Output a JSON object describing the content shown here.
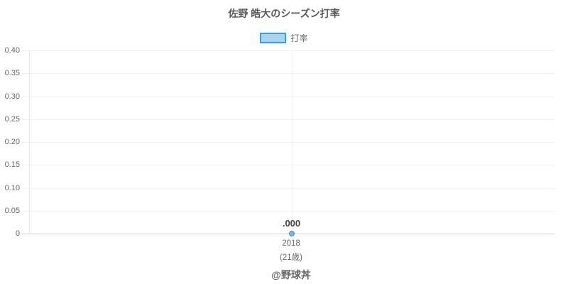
{
  "title": "佐野 皓大のシーズン打率",
  "legend": {
    "label": "打率"
  },
  "footer": "@野球丼",
  "colors": {
    "legend_fill": "#a9d3f2",
    "legend_border": "#3e9edc",
    "point_fill": "#72b3e2",
    "point_border": "#4396d4",
    "grid": "#efefef",
    "axis": "#cdcdcd",
    "title_text": "#595959",
    "label_text": "#666666"
  },
  "chart_data": {
    "type": "line",
    "title": "佐野 皓大のシーズン打率",
    "categories": [
      "2018"
    ],
    "category_sublabels": [
      "(21歳)"
    ],
    "series": [
      {
        "name": "打率",
        "values": [
          0.0
        ]
      }
    ],
    "point_labels": [
      ".000"
    ],
    "ylim": [
      0,
      0.4
    ],
    "ytick_step": 0.05,
    "yticks": [
      "0.40",
      "0.35",
      "0.30",
      "0.25",
      "0.20",
      "0.15",
      "0.10",
      "0.05",
      "0"
    ],
    "grid": true,
    "legend_position": "top",
    "credit": "@野球丼"
  }
}
